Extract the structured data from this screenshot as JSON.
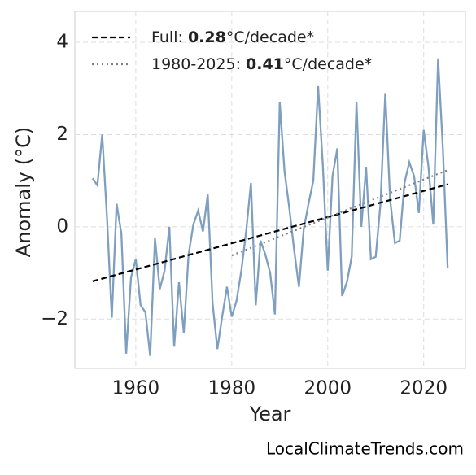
{
  "chart_data": {
    "type": "line",
    "xlabel": "Year",
    "ylabel": "Anomaly (°C)",
    "watermark": "LocalClimateTrends.com",
    "x": [
      1951,
      1952,
      1953,
      1954,
      1955,
      1956,
      1957,
      1958,
      1959,
      1960,
      1961,
      1962,
      1963,
      1964,
      1965,
      1966,
      1967,
      1968,
      1969,
      1970,
      1971,
      1972,
      1973,
      1974,
      1975,
      1976,
      1977,
      1978,
      1979,
      1980,
      1981,
      1982,
      1983,
      1984,
      1985,
      1986,
      1987,
      1988,
      1989,
      1990,
      1991,
      1992,
      1993,
      1994,
      1995,
      1996,
      1997,
      1998,
      1999,
      2000,
      2001,
      2002,
      2003,
      2004,
      2005,
      2006,
      2007,
      2008,
      2009,
      2010,
      2011,
      2012,
      2013,
      2014,
      2015,
      2016,
      2017,
      2018,
      2019,
      2020,
      2021,
      2022,
      2023,
      2024,
      2025
    ],
    "series": [
      {
        "color": "#7f9fc0",
        "values": [
          1.05,
          0.9,
          2.0,
          0.2,
          -1.97,
          0.5,
          -0.15,
          -2.75,
          -1.1,
          -0.7,
          -1.7,
          -1.85,
          -2.8,
          -0.25,
          -1.35,
          -0.95,
          0.0,
          -2.6,
          -1.2,
          -2.3,
          -0.6,
          0.05,
          0.35,
          -0.1,
          0.7,
          -1.65,
          -2.65,
          -1.95,
          -1.3,
          -1.95,
          -1.6,
          -0.95,
          -0.1,
          0.95,
          -1.7,
          -0.3,
          -0.6,
          -1.0,
          -1.9,
          2.7,
          1.2,
          0.4,
          -0.5,
          -1.3,
          -0.05,
          0.5,
          1.0,
          3.05,
          1.3,
          -0.95,
          1.1,
          1.7,
          -1.5,
          -1.2,
          -0.65,
          2.7,
          0.0,
          1.3,
          -0.7,
          -0.65,
          0.5,
          2.9,
          0.6,
          -0.35,
          -0.3,
          0.95,
          1.4,
          1.1,
          0.3,
          2.1,
          1.3,
          0.05,
          3.65,
          1.7,
          -0.9
        ]
      }
    ],
    "trends": [
      {
        "label": "Full: ",
        "rate": 0.28,
        "unit": "°C/decade*",
        "color": "#000000",
        "style": "dashed",
        "x": [
          1951,
          2025
        ],
        "values": [
          -1.18,
          0.92
        ]
      },
      {
        "label": "1980-2025: ",
        "rate": 0.41,
        "unit": "°C/decade*",
        "color": "#808080",
        "style": "dotted",
        "x": [
          1980,
          2025
        ],
        "values": [
          -0.62,
          1.23
        ]
      }
    ],
    "xlim": [
      1947.3,
      2028.7
    ],
    "ylim": [
      -3.07,
      4.67
    ],
    "xticks": [
      1960,
      1980,
      2000,
      2020
    ],
    "yticks": [
      {
        "value": -2,
        "label": "−2"
      },
      0,
      2,
      4
    ],
    "grid": true
  }
}
